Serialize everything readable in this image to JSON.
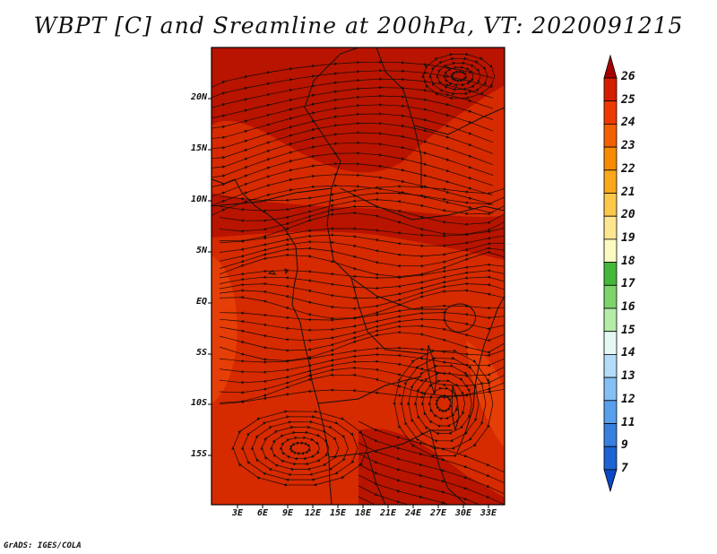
{
  "title": "WBPT [C] and Sreamline at 200hPa, VT: 2020091215",
  "credit": "GrADS: IGES/COLA",
  "map": {
    "lat_labels": [
      "20N",
      "15N",
      "10N",
      "5N",
      "EQ",
      "5S",
      "10S",
      "15S"
    ],
    "lon_labels": [
      "3E",
      "6E",
      "9E",
      "12E",
      "15E",
      "18E",
      "21E",
      "24E",
      "27E",
      "30E",
      "33E"
    ],
    "field_colors": {
      "dark": "#b81400",
      "main": "#d62a00",
      "light": "#e84408",
      "lighter": "#f05a10"
    }
  },
  "colorbar": {
    "labels": [
      "26",
      "25",
      "24",
      "23",
      "22",
      "21",
      "20",
      "19",
      "18",
      "17",
      "16",
      "15",
      "14",
      "13",
      "12",
      "11",
      "9",
      "7"
    ],
    "colors": [
      "#a50000",
      "#d41e00",
      "#ee3a00",
      "#f25f00",
      "#f88a00",
      "#faa71c",
      "#fcc84a",
      "#fee690",
      "#fbfac0",
      "#44b838",
      "#7cd46a",
      "#b4ecaa",
      "#e4f8f4",
      "#b4dcf8",
      "#84c0f4",
      "#58a0ec",
      "#3880e0",
      "#1c64d4",
      "#0c48c4"
    ]
  }
}
